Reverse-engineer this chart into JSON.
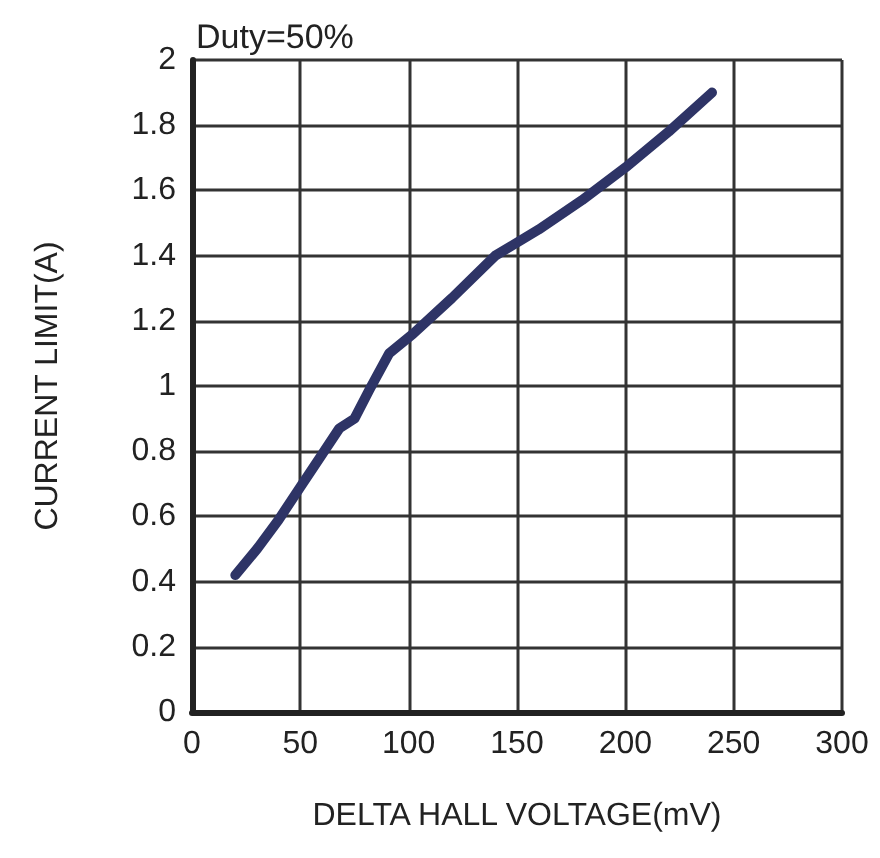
{
  "chart_data": {
    "type": "line",
    "xlabel": "DELTA HALL VOLTAGE(mV)",
    "ylabel": "CURRENT LIMIT(A)",
    "annotations": [
      "Duty=50%"
    ],
    "series": [
      {
        "color": "#2e3466",
        "x": [
          20,
          30,
          40,
          50,
          60,
          68,
          75,
          82,
          91,
          102,
          120,
          140,
          160,
          180,
          200,
          220,
          240
        ],
        "values": [
          0.42,
          0.5,
          0.59,
          0.69,
          0.79,
          0.87,
          0.9,
          0.99,
          1.1,
          1.16,
          1.27,
          1.4,
          1.48,
          1.57,
          1.67,
          1.78,
          1.9
        ]
      }
    ],
    "xlim": [
      0,
      300
    ],
    "xticks": [
      0,
      50,
      100,
      150,
      200,
      250,
      300
    ],
    "ylim": [
      0,
      2
    ],
    "yticks": [
      0,
      0.2,
      0.4,
      0.6,
      0.8,
      1,
      1.2,
      1.4,
      1.6,
      1.8,
      2
    ],
    "grid": true,
    "marker": "none",
    "line_style": "solid"
  }
}
